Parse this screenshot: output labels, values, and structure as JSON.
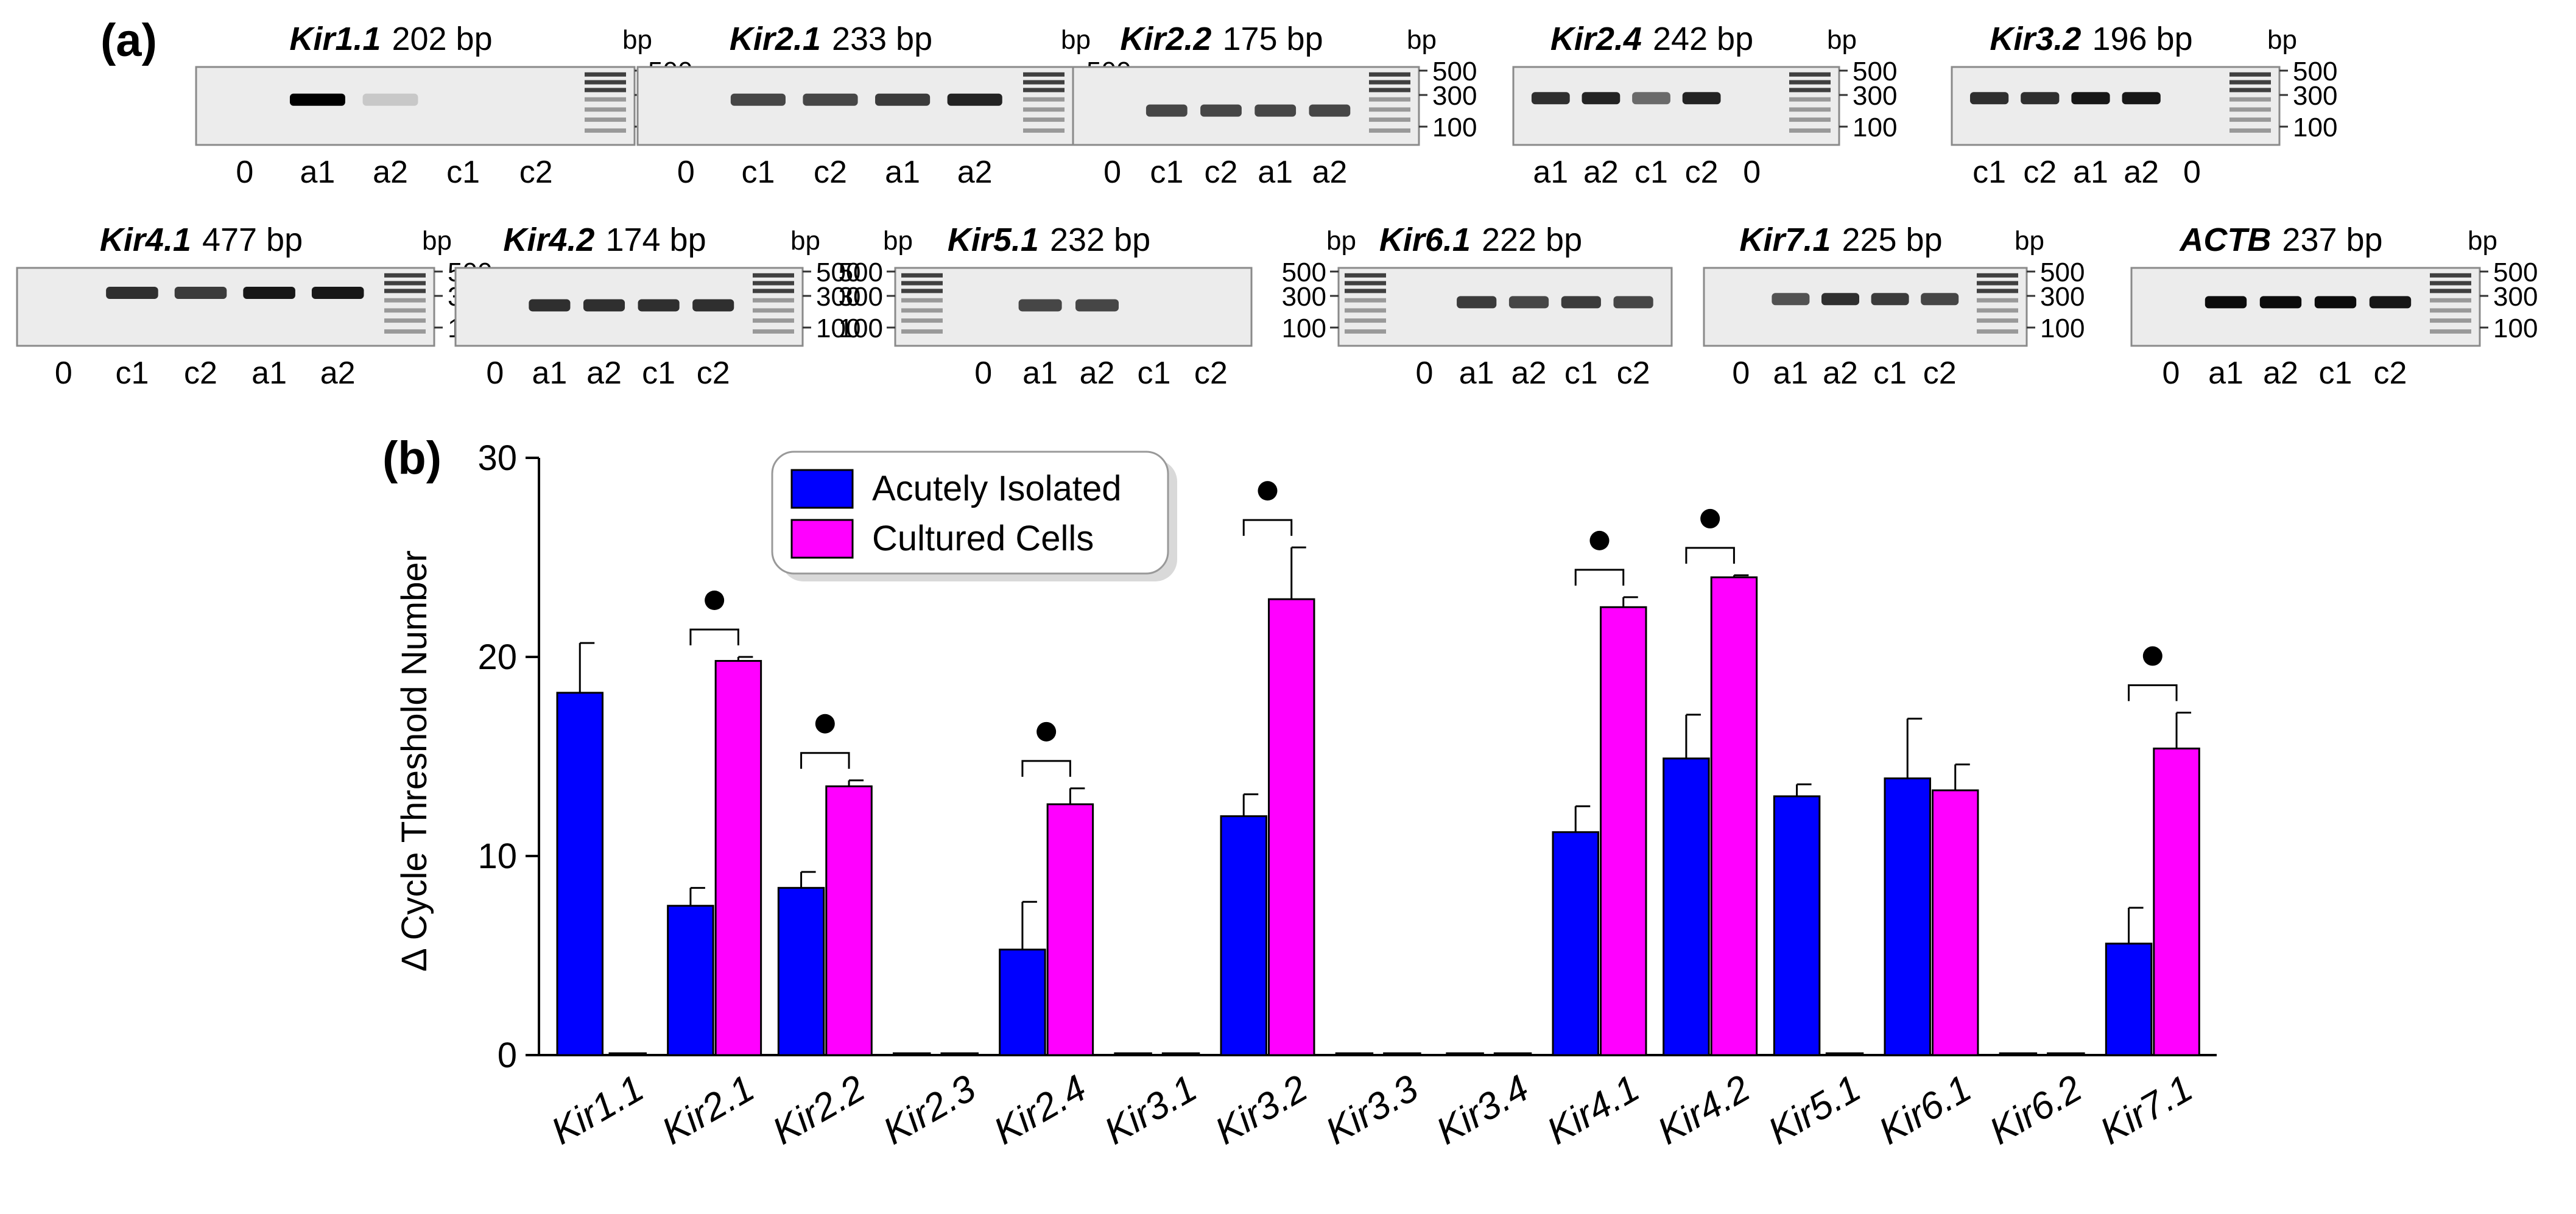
{
  "panel_a": {
    "label": "(a)",
    "bp_unit": "bp",
    "ladder_ticks": [
      "500",
      "300",
      "100"
    ],
    "gels": [
      {
        "gene": "Kir1.1",
        "size": "202 bp",
        "lanes": [
          "0",
          "a1",
          "a2",
          "c1",
          "c2"
        ],
        "band_intensity": [
          0,
          1.0,
          0.15,
          0.0,
          0.0
        ],
        "ladder_side": "right"
      },
      {
        "gene": "Kir2.1",
        "size": "233 bp",
        "lanes": [
          "0",
          "c1",
          "c2",
          "a1",
          "a2"
        ],
        "band_intensity": [
          0,
          0.7,
          0.7,
          0.75,
          0.85
        ],
        "ladder_side": "right"
      },
      {
        "gene": "Kir2.2",
        "size": "175 bp",
        "lanes": [
          "0",
          "c1",
          "c2",
          "a1",
          "a2"
        ],
        "band_intensity": [
          0,
          0.7,
          0.7,
          0.7,
          0.7
        ],
        "ladder_side": "right"
      },
      {
        "gene": "Kir2.4",
        "size": "242 bp",
        "lanes": [
          "a1",
          "a2",
          "c1",
          "c2",
          "0"
        ],
        "band_intensity": [
          0.8,
          0.85,
          0.55,
          0.85,
          0
        ],
        "ladder_side": "right"
      },
      {
        "gene": "Kir3.2",
        "size": "196 bp",
        "lanes": [
          "c1",
          "c2",
          "a1",
          "a2",
          "0"
        ],
        "band_intensity": [
          0.8,
          0.8,
          0.9,
          0.9,
          0
        ],
        "ladder_side": "right"
      },
      {
        "gene": "Kir4.1",
        "size": "477 bp",
        "lanes": [
          "0",
          "c1",
          "c2",
          "a1",
          "a2"
        ],
        "band_intensity": [
          0,
          0.8,
          0.75,
          0.9,
          0.9
        ],
        "ladder_side": "right"
      },
      {
        "gene": "Kir4.2",
        "size": "174 bp",
        "lanes": [
          "0",
          "a1",
          "a2",
          "c1",
          "c2"
        ],
        "band_intensity": [
          0,
          0.8,
          0.8,
          0.8,
          0.8
        ],
        "ladder_side": "right"
      },
      {
        "gene": "Kir5.1",
        "size": "232 bp",
        "lanes": [
          "0",
          "a1",
          "a2",
          "c1",
          "c2"
        ],
        "band_intensity": [
          0,
          0.7,
          0.7,
          0.0,
          0.0
        ],
        "ladder_side": "left"
      },
      {
        "gene": "Kir6.1",
        "size": "222 bp",
        "lanes": [
          "0",
          "a1",
          "a2",
          "c1",
          "c2"
        ],
        "band_intensity": [
          0,
          0.75,
          0.7,
          0.75,
          0.7
        ],
        "ladder_side": "left"
      },
      {
        "gene": "Kir7.1",
        "size": "225 bp",
        "lanes": [
          "0",
          "a1",
          "a2",
          "c1",
          "c2"
        ],
        "band_intensity": [
          0,
          0.65,
          0.8,
          0.75,
          0.7
        ],
        "ladder_side": "right"
      },
      {
        "gene": "ACTB",
        "size": "237 bp",
        "lanes": [
          "0",
          "a1",
          "a2",
          "c1",
          "c2"
        ],
        "band_intensity": [
          0,
          0.95,
          0.95,
          0.95,
          0.9
        ],
        "ladder_side": "right"
      }
    ]
  },
  "panel_b": {
    "label": "(b)",
    "chart_data": {
      "type": "bar",
      "title": "",
      "xlabel": "",
      "ylabel": "Δ Cycle Threshold Number",
      "ylim": [
        0,
        30
      ],
      "yticks": [
        0,
        10,
        20,
        30
      ],
      "categories": [
        "Kir1.1",
        "Kir2.1",
        "Kir2.2",
        "Kir2.3",
        "Kir2.4",
        "Kir3.1",
        "Kir3.2",
        "Kir3.3",
        "Kir3.4",
        "Kir4.1",
        "Kir4.2",
        "Kir5.1",
        "Kir6.1",
        "Kir6.2",
        "Kir7.1"
      ],
      "series": [
        {
          "name": "Acutely Isolated",
          "color": "#0000ff",
          "values": [
            18.2,
            7.5,
            8.4,
            0,
            5.3,
            0,
            12.0,
            0,
            0,
            11.2,
            14.9,
            13.0,
            13.9,
            0,
            5.6
          ],
          "errors": [
            2.5,
            0.9,
            0.8,
            0,
            2.4,
            0,
            1.1,
            0,
            0,
            1.3,
            2.2,
            0.6,
            3.0,
            0,
            1.8
          ]
        },
        {
          "name": "Cultured Cells",
          "color": "#ff00ff",
          "values": [
            0,
            19.8,
            13.5,
            0,
            12.6,
            0,
            22.9,
            0,
            0,
            22.5,
            24.0,
            0,
            13.3,
            0,
            15.4
          ],
          "errors": [
            0,
            0.2,
            0.3,
            0,
            0.8,
            0,
            2.6,
            0,
            0,
            0.5,
            0.1,
            0,
            1.3,
            0,
            1.8
          ]
        }
      ],
      "significant": [
        "Kir2.1",
        "Kir2.2",
        "Kir2.4",
        "Kir3.2",
        "Kir4.1",
        "Kir4.2",
        "Kir7.1"
      ],
      "legend_position": "top-left",
      "grid": false
    }
  }
}
